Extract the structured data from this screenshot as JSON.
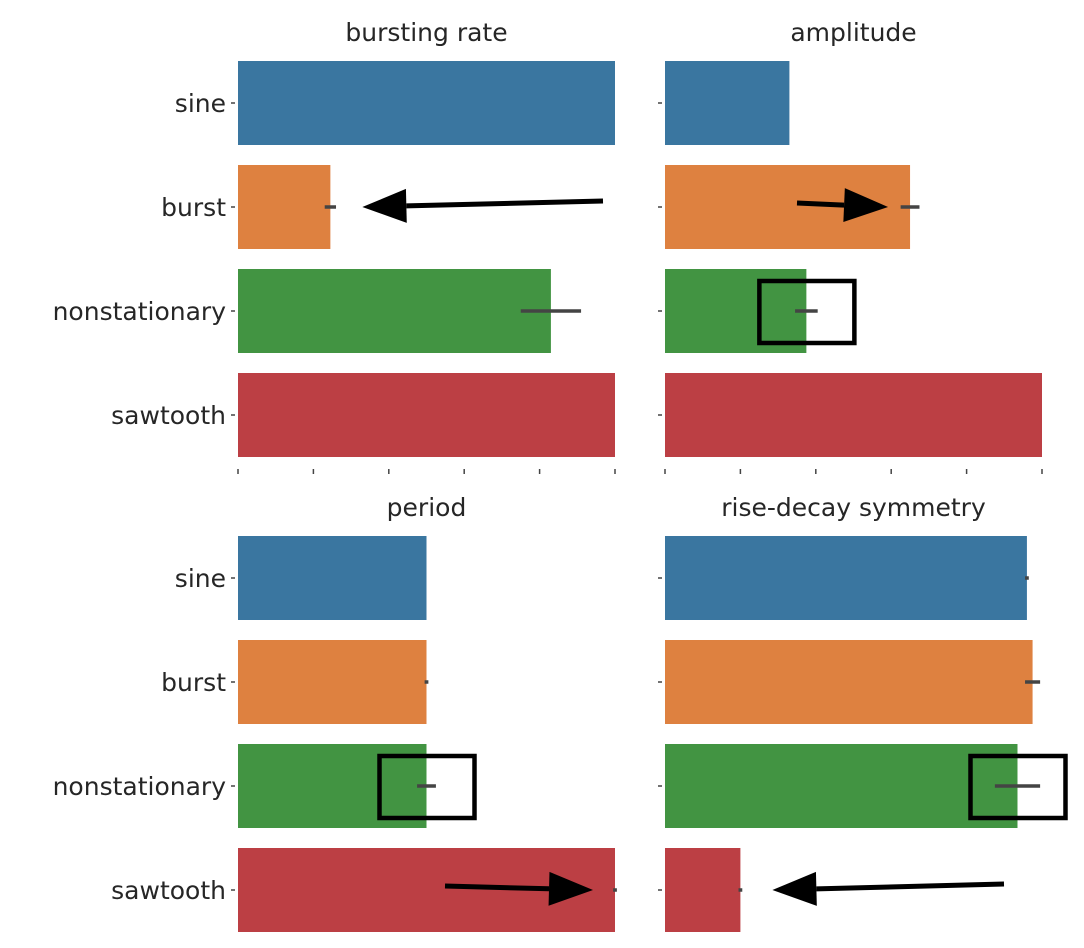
{
  "chart_data": [
    {
      "type": "bar",
      "orientation": "horizontal",
      "title": "bursting rate",
      "categories": [
        "sine",
        "burst",
        "nonstationary",
        "sawtooth"
      ],
      "values": [
        1.0,
        0.245,
        0.83,
        1.0
      ],
      "error": [
        null,
        0.03,
        0.16,
        null
      ],
      "xlim": [
        0,
        1.0
      ],
      "annotations": [
        {
          "type": "arrow",
          "category": "burst",
          "direction": "left"
        }
      ]
    },
    {
      "type": "bar",
      "orientation": "horizontal",
      "title": "amplitude",
      "categories": [
        "sine",
        "burst",
        "nonstationary",
        "sawtooth"
      ],
      "values": [
        0.33,
        0.65,
        0.375,
        1.0
      ],
      "error": [
        null,
        0.05,
        0.06,
        null
      ],
      "xlim": [
        0,
        1.0
      ],
      "annotations": [
        {
          "type": "arrow",
          "category": "burst",
          "direction": "right"
        },
        {
          "type": "box",
          "category": "nonstationary"
        }
      ]
    },
    {
      "type": "bar",
      "orientation": "horizontal",
      "title": "period",
      "categories": [
        "sine",
        "burst",
        "nonstationary",
        "sawtooth"
      ],
      "values": [
        0.5,
        0.5,
        0.5,
        1.0
      ],
      "error": [
        null,
        0.01,
        0.05,
        0.01
      ],
      "xlim": [
        0,
        1.0
      ],
      "annotations": [
        {
          "type": "box",
          "category": "nonstationary"
        },
        {
          "type": "arrow",
          "category": "sawtooth",
          "direction": "right"
        }
      ]
    },
    {
      "type": "bar",
      "orientation": "horizontal",
      "title": "rise-decay symmetry",
      "categories": [
        "sine",
        "burst",
        "nonstationary",
        "sawtooth"
      ],
      "values": [
        0.96,
        0.975,
        0.935,
        0.2
      ],
      "error": [
        0.01,
        0.04,
        0.12,
        0.01
      ],
      "xlim": [
        0,
        1.0
      ],
      "annotations": [
        {
          "type": "box",
          "category": "nonstationary"
        },
        {
          "type": "arrow",
          "category": "sawtooth",
          "direction": "left"
        }
      ]
    }
  ],
  "colors": {
    "sine": "#3a76a0",
    "burst": "#de8140",
    "nonstationary": "#429442",
    "sawtooth": "#bc3f44",
    "errorbar": "#444444",
    "annotation": "#000000"
  }
}
